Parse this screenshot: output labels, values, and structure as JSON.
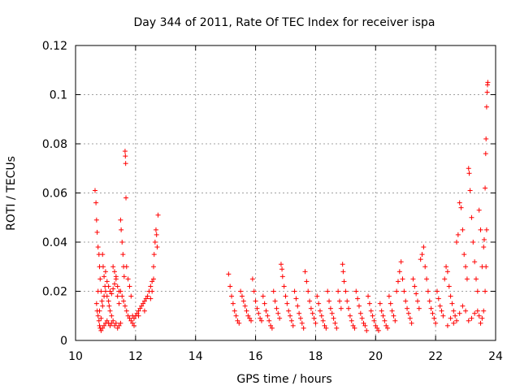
{
  "chart_data": {
    "type": "scatter",
    "title": "Day 344 of 2011, Rate Of TEC Index for receiver ispa",
    "xlabel": "GPS time / hours",
    "ylabel": "ROTI / TECUs",
    "xlim": [
      10,
      24
    ],
    "ylim": [
      0,
      0.12
    ],
    "x_ticks": [
      10,
      12,
      14,
      16,
      18,
      20,
      22,
      24
    ],
    "y_ticks": [
      0,
      0.02,
      0.04,
      0.06,
      0.08,
      0.1,
      0.12
    ],
    "x_tick_labels": [
      "10",
      "12",
      "14",
      "16",
      "18",
      "20",
      "22",
      "24"
    ],
    "y_tick_labels": [
      "0",
      "0.02",
      "0.04",
      "0.06",
      "0.08",
      "0.1",
      "0.12"
    ],
    "grid": true,
    "marker": "+",
    "color": "#ff0000",
    "series": [
      {
        "name": "ROTI",
        "points": [
          [
            10.65,
            0.061
          ],
          [
            10.68,
            0.056
          ],
          [
            10.7,
            0.049
          ],
          [
            10.72,
            0.044
          ],
          [
            10.75,
            0.038
          ],
          [
            10.78,
            0.035
          ],
          [
            10.8,
            0.03
          ],
          [
            10.82,
            0.025
          ],
          [
            10.85,
            0.02
          ],
          [
            10.88,
            0.016
          ],
          [
            10.7,
            0.015
          ],
          [
            10.72,
            0.012
          ],
          [
            10.75,
            0.01
          ],
          [
            10.78,
            0.008
          ],
          [
            10.8,
            0.006
          ],
          [
            10.82,
            0.005
          ],
          [
            10.85,
            0.004
          ],
          [
            10.9,
            0.005
          ],
          [
            10.95,
            0.006
          ],
          [
            11.0,
            0.007
          ],
          [
            10.9,
            0.035
          ],
          [
            10.92,
            0.03
          ],
          [
            10.95,
            0.026
          ],
          [
            10.98,
            0.022
          ],
          [
            11.0,
            0.02
          ],
          [
            11.05,
            0.018
          ],
          [
            11.1,
            0.016
          ],
          [
            11.12,
            0.014
          ],
          [
            11.15,
            0.012
          ],
          [
            11.2,
            0.01
          ],
          [
            11.0,
            0.028
          ],
          [
            11.05,
            0.024
          ],
          [
            11.1,
            0.022
          ],
          [
            11.15,
            0.02
          ],
          [
            11.2,
            0.019
          ],
          [
            11.25,
            0.021
          ],
          [
            11.3,
            0.023
          ],
          [
            11.35,
            0.025
          ],
          [
            11.4,
            0.022
          ],
          [
            11.45,
            0.02
          ],
          [
            11.05,
            0.008
          ],
          [
            11.1,
            0.007
          ],
          [
            11.15,
            0.006
          ],
          [
            11.2,
            0.007
          ],
          [
            11.25,
            0.008
          ],
          [
            11.3,
            0.006
          ],
          [
            11.35,
            0.007
          ],
          [
            11.4,
            0.005
          ],
          [
            11.45,
            0.006
          ],
          [
            11.5,
            0.007
          ],
          [
            11.5,
            0.049
          ],
          [
            11.52,
            0.045
          ],
          [
            11.55,
            0.04
          ],
          [
            11.58,
            0.035
          ],
          [
            11.6,
            0.03
          ],
          [
            11.62,
            0.026
          ],
          [
            11.65,
            0.077
          ],
          [
            11.66,
            0.075
          ],
          [
            11.67,
            0.072
          ],
          [
            11.68,
            0.058
          ],
          [
            11.5,
            0.02
          ],
          [
            11.55,
            0.018
          ],
          [
            11.6,
            0.016
          ],
          [
            11.65,
            0.014
          ],
          [
            11.7,
            0.012
          ],
          [
            11.75,
            0.01
          ],
          [
            11.8,
            0.009
          ],
          [
            11.85,
            0.008
          ],
          [
            11.9,
            0.007
          ],
          [
            11.95,
            0.006
          ],
          [
            11.7,
            0.03
          ],
          [
            11.75,
            0.025
          ],
          [
            11.8,
            0.022
          ],
          [
            11.85,
            0.018
          ],
          [
            11.9,
            0.01
          ],
          [
            11.95,
            0.009
          ],
          [
            12.0,
            0.01
          ],
          [
            12.05,
            0.011
          ],
          [
            12.1,
            0.012
          ],
          [
            12.15,
            0.013
          ],
          [
            12.2,
            0.014
          ],
          [
            12.25,
            0.015
          ],
          [
            12.3,
            0.016
          ],
          [
            12.35,
            0.017
          ],
          [
            12.4,
            0.018
          ],
          [
            12.45,
            0.02
          ],
          [
            12.5,
            0.022
          ],
          [
            12.55,
            0.024
          ],
          [
            12.6,
            0.03
          ],
          [
            12.62,
            0.035
          ],
          [
            12.65,
            0.04
          ],
          [
            12.68,
            0.045
          ],
          [
            12.7,
            0.043
          ],
          [
            12.72,
            0.038
          ],
          [
            12.75,
            0.051
          ],
          [
            12.6,
            0.025
          ],
          [
            12.55,
            0.02
          ],
          [
            12.5,
            0.017
          ],
          [
            12.3,
            0.012
          ],
          [
            12.1,
            0.01
          ],
          [
            10.75,
            0.02
          ],
          [
            10.8,
            0.012
          ],
          [
            10.85,
            0.009
          ],
          [
            10.9,
            0.014
          ],
          [
            10.95,
            0.018
          ],
          [
            11.25,
            0.03
          ],
          [
            11.3,
            0.028
          ],
          [
            11.35,
            0.026
          ],
          [
            11.4,
            0.018
          ],
          [
            11.45,
            0.015
          ],
          [
            15.1,
            0.027
          ],
          [
            15.15,
            0.022
          ],
          [
            15.2,
            0.018
          ],
          [
            15.25,
            0.015
          ],
          [
            15.3,
            0.012
          ],
          [
            15.35,
            0.01
          ],
          [
            15.4,
            0.008
          ],
          [
            15.45,
            0.007
          ],
          [
            15.5,
            0.02
          ],
          [
            15.55,
            0.018
          ],
          [
            15.6,
            0.016
          ],
          [
            15.65,
            0.014
          ],
          [
            15.7,
            0.012
          ],
          [
            15.75,
            0.01
          ],
          [
            15.8,
            0.009
          ],
          [
            15.85,
            0.008
          ],
          [
            15.9,
            0.025
          ],
          [
            15.95,
            0.02
          ],
          [
            16.0,
            0.016
          ],
          [
            16.05,
            0.013
          ],
          [
            16.1,
            0.011
          ],
          [
            16.15,
            0.009
          ],
          [
            16.2,
            0.008
          ],
          [
            16.25,
            0.018
          ],
          [
            16.3,
            0.015
          ],
          [
            16.35,
            0.012
          ],
          [
            16.4,
            0.01
          ],
          [
            16.45,
            0.008
          ],
          [
            16.5,
            0.006
          ],
          [
            16.55,
            0.005
          ],
          [
            16.6,
            0.02
          ],
          [
            16.65,
            0.016
          ],
          [
            16.7,
            0.013
          ],
          [
            16.75,
            0.011
          ],
          [
            16.8,
            0.009
          ],
          [
            16.85,
            0.031
          ],
          [
            16.88,
            0.029
          ],
          [
            16.9,
            0.026
          ],
          [
            16.95,
            0.022
          ],
          [
            17.0,
            0.018
          ],
          [
            17.05,
            0.015
          ],
          [
            17.1,
            0.012
          ],
          [
            17.15,
            0.01
          ],
          [
            17.2,
            0.008
          ],
          [
            17.25,
            0.006
          ],
          [
            17.3,
            0.02
          ],
          [
            17.35,
            0.017
          ],
          [
            17.4,
            0.014
          ],
          [
            17.45,
            0.011
          ],
          [
            17.5,
            0.009
          ],
          [
            17.55,
            0.007
          ],
          [
            17.6,
            0.005
          ],
          [
            17.65,
            0.028
          ],
          [
            17.7,
            0.024
          ],
          [
            17.75,
            0.02
          ],
          [
            17.8,
            0.016
          ],
          [
            17.85,
            0.013
          ],
          [
            17.9,
            0.011
          ],
          [
            17.95,
            0.009
          ],
          [
            18.0,
            0.007
          ],
          [
            18.05,
            0.018
          ],
          [
            18.1,
            0.015
          ],
          [
            18.15,
            0.012
          ],
          [
            18.2,
            0.01
          ],
          [
            18.25,
            0.008
          ],
          [
            18.3,
            0.006
          ],
          [
            18.35,
            0.005
          ],
          [
            18.4,
            0.02
          ],
          [
            18.45,
            0.016
          ],
          [
            18.5,
            0.013
          ],
          [
            18.55,
            0.011
          ],
          [
            18.6,
            0.009
          ],
          [
            18.65,
            0.007
          ],
          [
            18.7,
            0.005
          ],
          [
            18.75,
            0.02
          ],
          [
            18.8,
            0.016
          ],
          [
            18.85,
            0.013
          ],
          [
            18.9,
            0.031
          ],
          [
            18.92,
            0.028
          ],
          [
            18.95,
            0.024
          ],
          [
            19.0,
            0.02
          ],
          [
            19.05,
            0.016
          ],
          [
            19.1,
            0.013
          ],
          [
            19.15,
            0.01
          ],
          [
            19.2,
            0.008
          ],
          [
            19.25,
            0.006
          ],
          [
            19.3,
            0.005
          ],
          [
            19.35,
            0.02
          ],
          [
            19.4,
            0.017
          ],
          [
            19.45,
            0.014
          ],
          [
            19.5,
            0.011
          ],
          [
            19.55,
            0.009
          ],
          [
            19.6,
            0.007
          ],
          [
            19.65,
            0.006
          ],
          [
            19.7,
            0.004
          ],
          [
            19.75,
            0.018
          ],
          [
            19.8,
            0.015
          ],
          [
            19.85,
            0.012
          ],
          [
            19.9,
            0.01
          ],
          [
            19.95,
            0.008
          ],
          [
            20.0,
            0.006
          ],
          [
            20.05,
            0.005
          ],
          [
            20.1,
            0.004
          ],
          [
            20.15,
            0.015
          ],
          [
            20.2,
            0.012
          ],
          [
            20.25,
            0.01
          ],
          [
            20.3,
            0.008
          ],
          [
            20.35,
            0.006
          ],
          [
            20.4,
            0.005
          ],
          [
            20.45,
            0.018
          ],
          [
            20.5,
            0.015
          ],
          [
            20.55,
            0.012
          ],
          [
            20.6,
            0.01
          ],
          [
            20.65,
            0.008
          ],
          [
            20.7,
            0.02
          ],
          [
            20.75,
            0.024
          ],
          [
            20.8,
            0.028
          ],
          [
            20.85,
            0.032
          ],
          [
            20.9,
            0.025
          ],
          [
            20.95,
            0.02
          ],
          [
            21.0,
            0.016
          ],
          [
            21.05,
            0.013
          ],
          [
            21.1,
            0.011
          ],
          [
            21.15,
            0.009
          ],
          [
            21.2,
            0.007
          ],
          [
            21.25,
            0.025
          ],
          [
            21.3,
            0.022
          ],
          [
            21.35,
            0.019
          ],
          [
            21.4,
            0.016
          ],
          [
            21.45,
            0.013
          ],
          [
            21.5,
            0.033
          ],
          [
            21.55,
            0.035
          ],
          [
            21.6,
            0.038
          ],
          [
            21.65,
            0.03
          ],
          [
            21.7,
            0.025
          ],
          [
            21.75,
            0.02
          ],
          [
            21.8,
            0.016
          ],
          [
            21.85,
            0.013
          ],
          [
            21.9,
            0.011
          ],
          [
            21.95,
            0.009
          ],
          [
            22.0,
            0.007
          ],
          [
            22.05,
            0.02
          ],
          [
            22.1,
            0.017
          ],
          [
            22.15,
            0.014
          ],
          [
            22.2,
            0.012
          ],
          [
            22.25,
            0.01
          ],
          [
            22.3,
            0.025
          ],
          [
            22.35,
            0.03
          ],
          [
            22.4,
            0.028
          ],
          [
            22.45,
            0.022
          ],
          [
            22.5,
            0.018
          ],
          [
            22.55,
            0.015
          ],
          [
            22.6,
            0.012
          ],
          [
            22.65,
            0.01
          ],
          [
            22.7,
            0.04
          ],
          [
            22.75,
            0.043
          ],
          [
            22.8,
            0.056
          ],
          [
            22.85,
            0.054
          ],
          [
            22.9,
            0.045
          ],
          [
            22.95,
            0.035
          ],
          [
            23.0,
            0.03
          ],
          [
            23.05,
            0.025
          ],
          [
            23.1,
            0.07
          ],
          [
            23.12,
            0.068
          ],
          [
            23.15,
            0.061
          ],
          [
            23.2,
            0.05
          ],
          [
            23.25,
            0.04
          ],
          [
            23.3,
            0.032
          ],
          [
            23.35,
            0.025
          ],
          [
            23.4,
            0.02
          ],
          [
            23.45,
            0.053
          ],
          [
            23.5,
            0.045
          ],
          [
            23.55,
            0.03
          ],
          [
            23.6,
            0.038
          ],
          [
            23.62,
            0.041
          ],
          [
            23.65,
            0.062
          ],
          [
            23.67,
            0.076
          ],
          [
            23.68,
            0.082
          ],
          [
            23.7,
            0.095
          ],
          [
            23.72,
            0.101
          ],
          [
            23.73,
            0.104
          ],
          [
            23.74,
            0.105
          ],
          [
            23.7,
            0.045
          ],
          [
            23.68,
            0.03
          ],
          [
            23.65,
            0.02
          ],
          [
            23.6,
            0.012
          ],
          [
            23.55,
            0.009
          ],
          [
            23.5,
            0.007
          ],
          [
            23.45,
            0.01
          ],
          [
            23.4,
            0.012
          ],
          [
            23.3,
            0.011
          ],
          [
            23.2,
            0.009
          ],
          [
            23.1,
            0.008
          ],
          [
            23.0,
            0.012
          ],
          [
            22.9,
            0.014
          ],
          [
            22.8,
            0.011
          ],
          [
            22.7,
            0.008
          ],
          [
            22.6,
            0.007
          ],
          [
            22.5,
            0.009
          ],
          [
            22.4,
            0.006
          ]
        ]
      }
    ]
  }
}
